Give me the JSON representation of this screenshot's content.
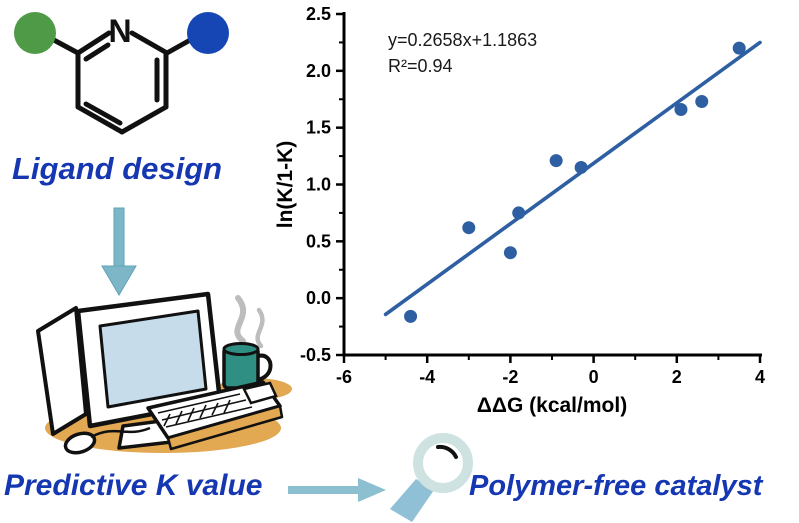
{
  "flow": {
    "ligand_label": "Ligand design",
    "predictive_label": "Predictive K value",
    "polymer_label": "Polymer-free catalyst"
  },
  "molecule": {
    "atom_label": "N",
    "left_substituent_color": "#4e9a47",
    "right_substituent_color": "#1546b3"
  },
  "chart_data": {
    "type": "scatter",
    "title": "",
    "annotation_line1": "y=0.2658x+1.1863",
    "annotation_line2": "R²=0.94",
    "xlabel": "ΔΔG (kcal/mol)",
    "ylabel": "ln(K/1-K)",
    "xlim": [
      -6,
      4
    ],
    "ylim": [
      -0.5,
      2.5
    ],
    "x_major_ticks": [
      -6,
      -4,
      -2,
      0,
      2,
      4
    ],
    "x_tick_labels": [
      "-6",
      "-4",
      "-2",
      "0",
      "2",
      "4"
    ],
    "y_major_ticks": [
      -0.5,
      0.0,
      0.5,
      1.0,
      1.5,
      2.0,
      2.5
    ],
    "y_tick_labels": [
      "-0.5",
      "0.0",
      "0.5",
      "1.0",
      "1.5",
      "2.0",
      "2.5"
    ],
    "grid": false,
    "legend": "none",
    "points": [
      [
        -4.4,
        -0.16
      ],
      [
        -3.0,
        0.62
      ],
      [
        -2.0,
        0.4
      ],
      [
        -1.8,
        0.75
      ],
      [
        -0.9,
        1.21
      ],
      [
        -0.3,
        1.15
      ],
      [
        2.1,
        1.66
      ],
      [
        2.6,
        1.73
      ],
      [
        3.5,
        2.2
      ]
    ],
    "fit": {
      "slope": 0.2658,
      "intercept": 1.1863,
      "x_start": -5.0,
      "x_end": 4.0
    },
    "point_color": "#2e5fa3",
    "line_color": "#2e5fa3",
    "axis_color": "#000000"
  },
  "colors": {
    "heading_blue": "#1637b2",
    "molecule_green": "#4e9a47",
    "molecule_blue": "#1546b3",
    "teal_arrow": "#7db7c7",
    "teal_arrow_edge": "#5ea4b6",
    "right_arrow": "#8cc0d0",
    "magnifier_ring": "#cfe2e2",
    "magnifier_handle": "#8fc0d6",
    "mug_teal": "#2f8f82",
    "shadow_tan": "#e2a852",
    "screen_blue": "#c6dcea",
    "steam_gray": "#bdbdbd"
  }
}
